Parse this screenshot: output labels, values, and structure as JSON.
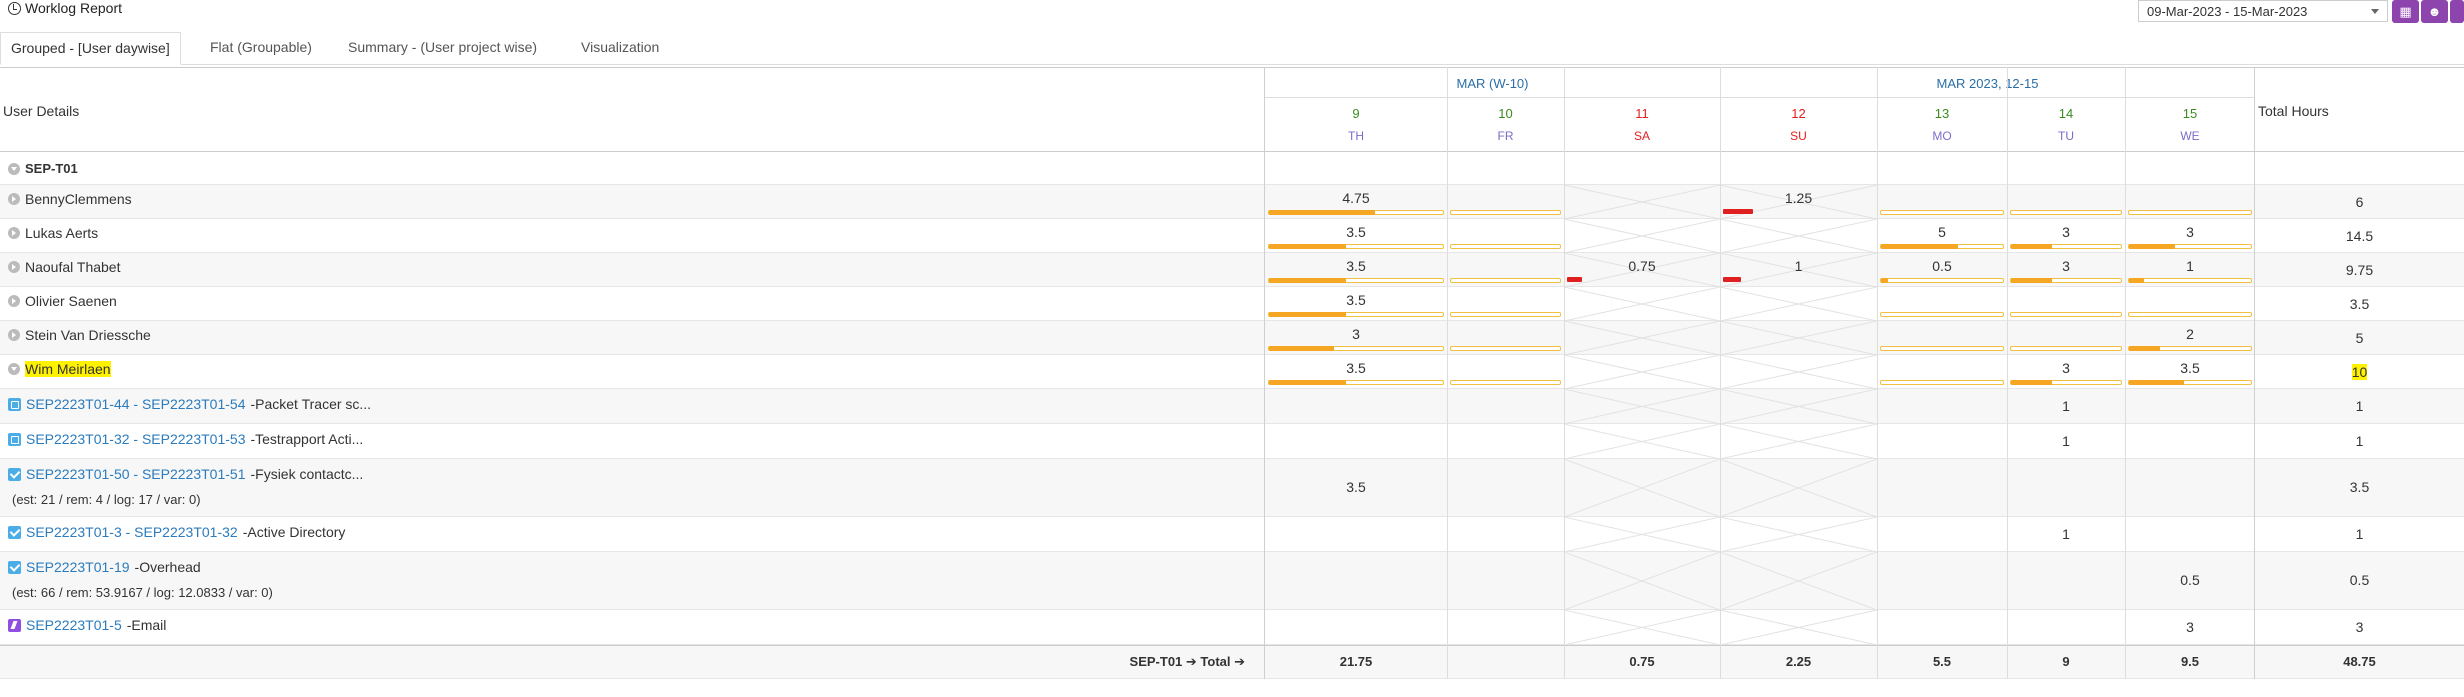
{
  "title": "Worklog Report",
  "date_range": "09-Mar-2023 - 15-Mar-2023",
  "toolbar_icons": [
    "calendar-icon",
    "users-icon",
    "more-icon"
  ],
  "tabs": [
    {
      "label": "Grouped - [User daywise]",
      "active": true
    },
    {
      "label": "Flat (Groupable)",
      "active": false
    },
    {
      "label": "Summary - (User project wise)",
      "active": false
    },
    {
      "label": "Visualization",
      "active": false
    }
  ],
  "header": {
    "user_details": "User Details",
    "total_hours": "Total Hours",
    "weeks": [
      "MAR (W-10)",
      "MAR 2023, 12-15"
    ],
    "days": [
      {
        "num": "9",
        "name": "TH",
        "weekend": false
      },
      {
        "num": "10",
        "name": "FR",
        "weekend": false
      },
      {
        "num": "11",
        "name": "SA",
        "weekend": true
      },
      {
        "num": "12",
        "name": "SU",
        "weekend": true
      },
      {
        "num": "13",
        "name": "MO",
        "weekend": false
      },
      {
        "num": "14",
        "name": "TU",
        "weekend": false
      },
      {
        "num": "15",
        "name": "WE",
        "weekend": false
      }
    ]
  },
  "colors": {
    "weekday_num": "#3a8c1e",
    "weekend": "#e02020",
    "day_name": "#7b6ec8",
    "accent": "#8e44ad"
  },
  "group": {
    "label": "SEP-T01"
  },
  "users": [
    {
      "name": "BennyClemmens",
      "values": [
        "4.75",
        "",
        "",
        "1.25",
        "",
        "",
        ""
      ],
      "fills": [
        0.6,
        0,
        0,
        0.2,
        0,
        0,
        0
      ],
      "total": "6"
    },
    {
      "name": "Lukas Aerts",
      "values": [
        "3.5",
        "",
        "",
        "",
        "5",
        "3",
        "3"
      ],
      "fills": [
        0.44,
        0,
        0,
        0,
        0.62,
        0.37,
        0.37
      ],
      "total": "14.5"
    },
    {
      "name": "Naoufal Thabet",
      "values": [
        "3.5",
        "",
        "0.75",
        "1",
        "0.5",
        "3",
        "1"
      ],
      "fills": [
        0.44,
        0,
        0.1,
        0.12,
        0.06,
        0.37,
        0.12
      ],
      "total": "9.75"
    },
    {
      "name": "Olivier Saenen",
      "values": [
        "3.5",
        "",
        "",
        "",
        "",
        "",
        ""
      ],
      "fills": [
        0.44,
        0,
        0,
        0,
        0,
        0,
        0
      ],
      "total": "3.5"
    },
    {
      "name": "Stein Van Driessche",
      "values": [
        "3",
        "",
        "",
        "",
        "",
        "",
        "2"
      ],
      "fills": [
        0.37,
        0,
        0,
        0,
        0,
        0,
        0.25
      ],
      "total": "5"
    },
    {
      "name": "Wim Meirlaen",
      "values": [
        "3.5",
        "",
        "",
        "",
        "",
        "3",
        "3.5"
      ],
      "fills": [
        0.44,
        0,
        0,
        0,
        0,
        0.37,
        0.44
      ],
      "total": "10"
    }
  ],
  "issues": [
    {
      "key": "SEP2223T01-44 - SEP2223T01-54",
      "summary": " -Packet Tracer sc...",
      "meta": "",
      "icon": "subtask-icon",
      "values": [
        "",
        "",
        "",
        "",
        "",
        "1",
        ""
      ],
      "total": "1"
    },
    {
      "key": "SEP2223T01-32 - SEP2223T01-53",
      "summary": " -Testrapport Acti...",
      "meta": "",
      "icon": "subtask-icon",
      "values": [
        "",
        "",
        "",
        "",
        "",
        "1",
        ""
      ],
      "total": "1"
    },
    {
      "key": "SEP2223T01-50 - SEP2223T01-51",
      "summary": " -Fysiek contactc...",
      "meta": "(est: 21 / rem: 4 / log: 17 / var: 0)",
      "icon": "task-icon",
      "values": [
        "3.5",
        "",
        "",
        "",
        "",
        "",
        ""
      ],
      "total": "3.5"
    },
    {
      "key": "SEP2223T01-3 - SEP2223T01-32",
      "summary": " -Active Directory",
      "meta": "",
      "icon": "task-icon",
      "values": [
        "",
        "",
        "",
        "",
        "",
        "1",
        ""
      ],
      "total": "1"
    },
    {
      "key": "SEP2223T01-19",
      "summary": " -Overhead",
      "meta": "(est: 66 / rem: 53.9167 / log: 12.0833 / var: 0)",
      "icon": "task-icon",
      "values": [
        "",
        "",
        "",
        "",
        "",
        "",
        "0.5"
      ],
      "total": "0.5"
    },
    {
      "key": "SEP2223T01-5",
      "summary": " -Email",
      "meta": "",
      "icon": "epic-icon",
      "values": [
        "",
        "",
        "",
        "",
        "",
        "",
        "3"
      ],
      "total": "3"
    }
  ],
  "totals": {
    "label": "SEP-T01 ➔ Total ➔",
    "values": [
      "21.75",
      "",
      "0.75",
      "2.25",
      "5.5",
      "9",
      "9.5"
    ],
    "total": "48.75"
  }
}
